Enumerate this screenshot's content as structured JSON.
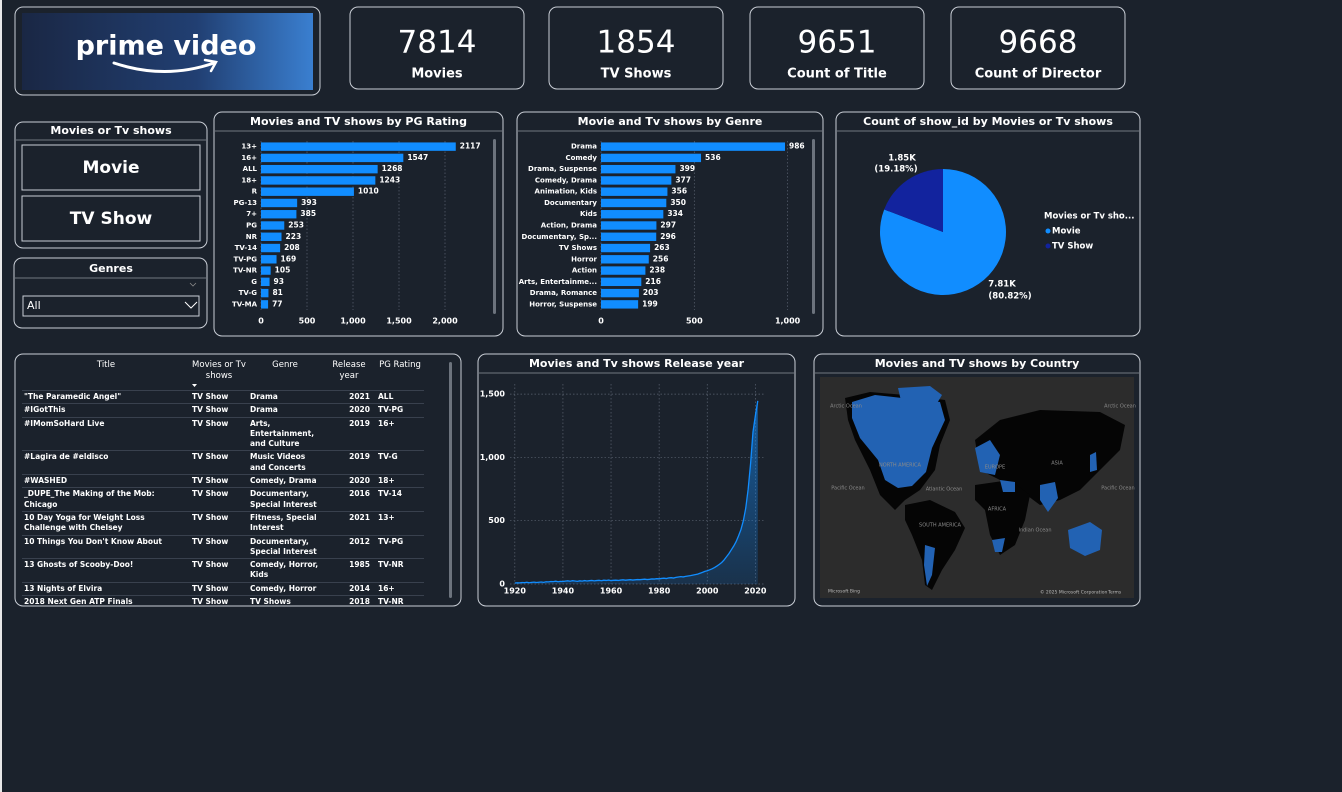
{
  "logo": {
    "text": "prime video"
  },
  "cards": [
    {
      "value": 7814,
      "label": "Movies"
    },
    {
      "value": 1854,
      "label": "TV Shows"
    },
    {
      "value": 9651,
      "label": "Count of Title"
    },
    {
      "value": 9668,
      "label": "Count of Director"
    }
  ],
  "slicers": [
    {
      "title": "Movies or Tv shows",
      "options": [
        "Movie",
        "TV Show"
      ]
    },
    {
      "title": "Genres",
      "selected": "All"
    }
  ],
  "table": {
    "columns": [
      "Title",
      "Movies or Tv shows",
      "Genre",
      "Release year",
      "PG Rating"
    ],
    "rows": [
      [
        "\"The Paramedic Angel\"",
        "TV Show",
        "Drama",
        2021,
        "ALL"
      ],
      [
        "#IGotThis",
        "TV Show",
        "Drama",
        2020,
        "TV-PG"
      ],
      [
        "#IMomSoHard Live",
        "TV Show",
        "Arts, Entertainment, and Culture",
        2019,
        "16+"
      ],
      [
        "#Lagira de #eldisco",
        "TV Show",
        "Music Videos and Concerts",
        2019,
        "TV-G"
      ],
      [
        "#WASHED",
        "TV Show",
        "Comedy, Drama",
        2020,
        "18+"
      ],
      [
        "_DUPE_The Making of the Mob: Chicago",
        "TV Show",
        "Documentary, Special Interest",
        2016,
        "TV-14"
      ],
      [
        "10 Day Yoga for Weight Loss Challenge with Chelsey",
        "TV Show",
        "Fitness, Special Interest",
        2021,
        "13+"
      ],
      [
        "10 Things You Don't Know About",
        "TV Show",
        "Documentary, Special Interest",
        2012,
        "TV-PG"
      ],
      [
        "13 Ghosts of Scooby-Doo!",
        "TV Show",
        "Comedy, Horror, Kids",
        1985,
        "TV-NR"
      ],
      [
        "13 Nights of Elvira",
        "TV Show",
        "Comedy, Horror",
        2014,
        "16+"
      ],
      [
        "2018 Next Gen ATP Finals",
        "TV Show",
        "TV Shows",
        2018,
        "TV-NR"
      ]
    ]
  },
  "map": {
    "title": "Movies and TV shows by Country",
    "labels": [
      "Arctic Ocean",
      "Arctic Ocean",
      "NORTH AMERICA",
      "EUROPE",
      "ASIA",
      "Pacific Ocean",
      "Atlantic Ocean",
      "Pacific Ocean",
      "AFRICA",
      "SOUTH AMERICA",
      "Indian Ocean"
    ],
    "credits": [
      "Microsoft Bing",
      "© 2025 Microsoft Corporation",
      "Terms"
    ]
  },
  "chart_data": [
    {
      "type": "bar",
      "orientation": "horizontal",
      "title": "Movies and TV shows by PG Rating",
      "categories": [
        "13+",
        "16+",
        "ALL",
        "18+",
        "R",
        "PG-13",
        "7+",
        "PG",
        "NR",
        "TV-14",
        "TV-PG",
        "TV-NR",
        "G",
        "TV-G",
        "TV-MA"
      ],
      "values": [
        2117,
        1547,
        1268,
        1243,
        1010,
        393,
        385,
        253,
        223,
        208,
        169,
        105,
        93,
        81,
        77
      ],
      "color": "#118dff",
      "xlim": [
        0,
        2500
      ],
      "xticks": [
        0,
        500,
        {
          "value": 1000,
          "label": "1,000"
        },
        {
          "value": 1500,
          "label": "1,500"
        },
        {
          "value": 2000,
          "label": "2,000"
        }
      ],
      "grid": true
    },
    {
      "type": "bar",
      "orientation": "horizontal",
      "title": "Movie and Tv shows by Genre",
      "categories": [
        "Drama",
        "Comedy",
        "Drama, Suspense",
        "Comedy, Drama",
        "Animation, Kids",
        "Documentary",
        "Kids",
        "Action, Drama",
        "Documentary, Sp...",
        "TV Shows",
        "Horror",
        "Action",
        "Arts, Entertainme...",
        "Drama, Romance",
        "Horror, Suspense"
      ],
      "values": [
        986,
        536,
        399,
        377,
        356,
        350,
        334,
        297,
        296,
        263,
        256,
        238,
        216,
        203,
        199
      ],
      "color": "#118dff",
      "xlim": [
        0,
        1120
      ],
      "xticks": [
        0,
        500,
        {
          "value": 1000,
          "label": "1,000"
        }
      ],
      "grid": true
    },
    {
      "type": "pie",
      "title": "Count of show_id by Movies or Tv shows",
      "legend_title": "Movies or Tv sho...",
      "categories": [
        "Movie",
        "TV Show"
      ],
      "values": [
        7814,
        1854
      ],
      "value_labels": [
        "7.81K",
        "1.85K"
      ],
      "percent_labels": [
        "(80.82%)",
        "(19.18%)"
      ],
      "colors": [
        "#118dff",
        "#12239e"
      ],
      "legend": "right"
    },
    {
      "type": "line",
      "title": "Movies and Tv shows Release year",
      "area": true,
      "x": [
        1920,
        1921,
        1922,
        1923,
        1924,
        1925,
        1926,
        1927,
        1928,
        1929,
        1930,
        1931,
        1932,
        1933,
        1934,
        1935,
        1936,
        1937,
        1938,
        1939,
        1940,
        1941,
        1942,
        1943,
        1944,
        1945,
        1946,
        1947,
        1948,
        1949,
        1950,
        1951,
        1952,
        1953,
        1954,
        1955,
        1956,
        1957,
        1958,
        1959,
        1960,
        1961,
        1962,
        1963,
        1964,
        1965,
        1966,
        1967,
        1968,
        1969,
        1970,
        1971,
        1972,
        1973,
        1974,
        1975,
        1976,
        1977,
        1978,
        1979,
        1980,
        1981,
        1982,
        1983,
        1984,
        1985,
        1986,
        1987,
        1988,
        1989,
        1990,
        1991,
        1992,
        1993,
        1994,
        1995,
        1996,
        1997,
        1998,
        1999,
        2000,
        2001,
        2002,
        2003,
        2004,
        2005,
        2006,
        2007,
        2008,
        2009,
        2010,
        2011,
        2012,
        2013,
        2014,
        2015,
        2016,
        2017,
        2018,
        2019,
        2020,
        2021
      ],
      "values": [
        8,
        10,
        9,
        12,
        11,
        14,
        10,
        13,
        15,
        12,
        14,
        16,
        13,
        18,
        17,
        20,
        19,
        22,
        18,
        21,
        20,
        23,
        25,
        22,
        26,
        24,
        21,
        25,
        23,
        27,
        24,
        26,
        28,
        25,
        27,
        29,
        26,
        30,
        28,
        31,
        27,
        29,
        30,
        28,
        31,
        33,
        30,
        32,
        34,
        31,
        33,
        35,
        34,
        36,
        38,
        35,
        37,
        40,
        39,
        42,
        41,
        44,
        46,
        43,
        48,
        50,
        47,
        52,
        55,
        58,
        56,
        60,
        63,
        66,
        70,
        74,
        78,
        85,
        92,
        100,
        105,
        112,
        120,
        130,
        142,
        155,
        170,
        190,
        215,
        240,
        270,
        300,
        335,
        380,
        430,
        500,
        600,
        750,
        950,
        1200,
        1330,
        1447
      ],
      "color": "#118dff",
      "xlim": [
        1918,
        2024
      ],
      "xticks": [
        1920,
        1940,
        1960,
        1980,
        2000,
        2020
      ],
      "ylim": [
        0,
        1580
      ],
      "yticks": [
        0,
        500,
        {
          "value": 1000,
          "label": "1,000"
        },
        {
          "value": 1500,
          "label": "1,500"
        }
      ],
      "grid": true
    }
  ]
}
